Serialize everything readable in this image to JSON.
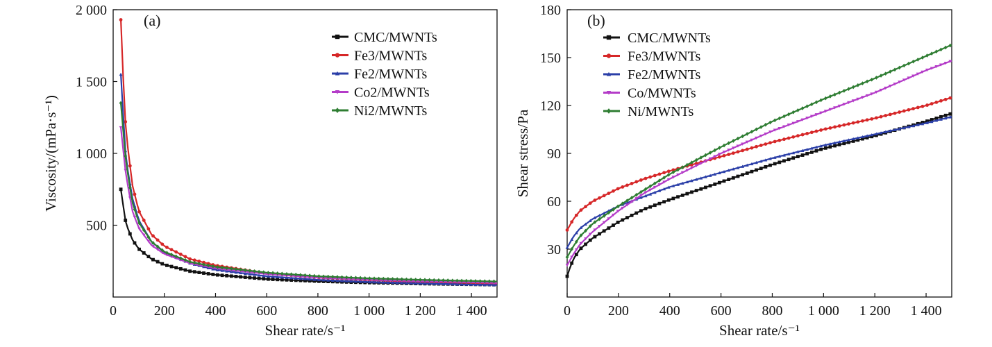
{
  "colors": {
    "CMC": "#111111",
    "Fe3": "#d62728",
    "Fe2": "#2b3fa8",
    "Co": "#b43cc8",
    "Ni": "#2e7d32"
  },
  "chart_data": [
    {
      "type": "line",
      "panel_label": "(a)",
      "title": "",
      "xlabel": "Shear rate/s⁻¹",
      "ylabel": "Viscosity/(mPa·s⁻¹)",
      "xlim": [
        0,
        1500
      ],
      "ylim": [
        0,
        2000
      ],
      "xticks": [
        0,
        200,
        400,
        600,
        800,
        1000,
        1200,
        1400
      ],
      "xtick_labels": [
        "0",
        "200",
        "400",
        "600",
        "800",
        "1 000",
        "1 200",
        "1 400"
      ],
      "yticks": [
        500,
        1000,
        1500,
        2000
      ],
      "ytick_labels": [
        "500",
        "1 000",
        "1 500",
        "2 000"
      ],
      "legend_position": "top-right",
      "series": [
        {
          "name": "CMC/MWNTs",
          "color_key": "CMC",
          "marker": "square",
          "points": [
            [
              30,
              750
            ],
            [
              50,
              510
            ],
            [
              75,
              400
            ],
            [
              100,
              335
            ],
            [
              150,
              265
            ],
            [
              200,
              225
            ],
            [
              300,
              180
            ],
            [
              400,
              155
            ],
            [
              600,
              125
            ],
            [
              800,
              110
            ],
            [
              1000,
              100
            ],
            [
              1200,
              93
            ],
            [
              1400,
              88
            ],
            [
              1500,
              85
            ]
          ]
        },
        {
          "name": "Fe3/MWNTs",
          "color_key": "Fe3",
          "marker": "circle",
          "points": [
            [
              30,
              1930
            ],
            [
              40,
              1500
            ],
            [
              50,
              1150
            ],
            [
              75,
              780
            ],
            [
              100,
              600
            ],
            [
              150,
              435
            ],
            [
              200,
              355
            ],
            [
              300,
              265
            ],
            [
              400,
              220
            ],
            [
              600,
              165
            ],
            [
              800,
              135
            ],
            [
              1000,
              118
            ],
            [
              1200,
              105
            ],
            [
              1400,
              97
            ],
            [
              1500,
              93
            ]
          ]
        },
        {
          "name": "Fe2/MWNTs",
          "color_key": "Fe2",
          "marker": "triangle-up",
          "points": [
            [
              30,
              1550
            ],
            [
              40,
              1250
            ],
            [
              50,
              960
            ],
            [
              75,
              690
            ],
            [
              100,
              535
            ],
            [
              150,
              385
            ],
            [
              200,
              310
            ],
            [
              300,
              235
            ],
            [
              400,
              190
            ],
            [
              600,
              145
            ],
            [
              800,
              120
            ],
            [
              1000,
              105
            ],
            [
              1200,
              95
            ],
            [
              1400,
              87
            ],
            [
              1500,
              84
            ]
          ]
        },
        {
          "name": "Co2/MWNTs",
          "color_key": "Co",
          "marker": "triangle-down",
          "points": [
            [
              30,
              1180
            ],
            [
              50,
              850
            ],
            [
              75,
              600
            ],
            [
              100,
              480
            ],
            [
              150,
              360
            ],
            [
              200,
              300
            ],
            [
              300,
              235
            ],
            [
              400,
              200
            ],
            [
              600,
              160
            ],
            [
              800,
              135
            ],
            [
              1000,
              120
            ],
            [
              1200,
              110
            ],
            [
              1400,
              102
            ],
            [
              1500,
              98
            ]
          ]
        },
        {
          "name": "Ni2/MWNTs",
          "color_key": "Ni",
          "marker": "diamond",
          "points": [
            [
              30,
              1350
            ],
            [
              50,
              940
            ],
            [
              75,
              660
            ],
            [
              100,
              520
            ],
            [
              150,
              385
            ],
            [
              200,
              315
            ],
            [
              300,
              245
            ],
            [
              400,
              210
            ],
            [
              600,
              170
            ],
            [
              800,
              145
            ],
            [
              1000,
              130
            ],
            [
              1200,
              120
            ],
            [
              1400,
              112
            ],
            [
              1500,
              108
            ]
          ]
        }
      ]
    },
    {
      "type": "line",
      "panel_label": "(b)",
      "title": "",
      "xlabel": "Shear rate/s⁻¹",
      "ylabel": "Shear stress/Pa",
      "xlim": [
        0,
        1500
      ],
      "ylim": [
        0,
        180
      ],
      "xticks": [
        0,
        200,
        400,
        600,
        800,
        1000,
        1200,
        1400
      ],
      "xtick_labels": [
        "0",
        "200",
        "400",
        "600",
        "800",
        "1 000",
        "1 200",
        "1 400"
      ],
      "yticks": [
        30,
        60,
        90,
        120,
        150,
        180
      ],
      "ytick_labels": [
        "30",
        "60",
        "90",
        "120",
        "150",
        "180"
      ],
      "legend_position": "top-left",
      "series": [
        {
          "name": "CMC/MWNTs",
          "color_key": "CMC",
          "marker": "square",
          "points": [
            [
              0,
              13
            ],
            [
              10,
              18
            ],
            [
              25,
              24
            ],
            [
              50,
              30
            ],
            [
              100,
              37
            ],
            [
              200,
              47
            ],
            [
              300,
              55
            ],
            [
              400,
              61
            ],
            [
              600,
              72
            ],
            [
              800,
              83
            ],
            [
              1000,
              93
            ],
            [
              1200,
              101
            ],
            [
              1400,
              110
            ],
            [
              1500,
              115
            ]
          ]
        },
        {
          "name": "Fe3/MWNTs",
          "color_key": "Fe3",
          "marker": "circle",
          "points": [
            [
              0,
              42
            ],
            [
              25,
              49
            ],
            [
              50,
              54
            ],
            [
              100,
              60
            ],
            [
              200,
              68
            ],
            [
              300,
              74
            ],
            [
              400,
              79
            ],
            [
              600,
              88
            ],
            [
              800,
              97
            ],
            [
              1000,
              105
            ],
            [
              1200,
              112
            ],
            [
              1400,
              120
            ],
            [
              1500,
              125
            ]
          ]
        },
        {
          "name": "Fe2/MWNTs",
          "color_key": "Fe2",
          "marker": "triangle-up",
          "points": [
            [
              0,
              31
            ],
            [
              25,
              38
            ],
            [
              50,
              43
            ],
            [
              100,
              49
            ],
            [
              200,
              57
            ],
            [
              300,
              63
            ],
            [
              400,
              69
            ],
            [
              600,
              78
            ],
            [
              800,
              87
            ],
            [
              1000,
              95
            ],
            [
              1200,
              102
            ],
            [
              1400,
              109
            ],
            [
              1500,
              113
            ]
          ]
        },
        {
          "name": "Co/MWNTs",
          "color_key": "Co",
          "marker": "triangle-down",
          "points": [
            [
              0,
              20
            ],
            [
              25,
              27
            ],
            [
              50,
              33
            ],
            [
              100,
              41
            ],
            [
              200,
              54
            ],
            [
              300,
              65
            ],
            [
              400,
              74
            ],
            [
              600,
              90
            ],
            [
              800,
              104
            ],
            [
              1000,
              116
            ],
            [
              1200,
              128
            ],
            [
              1400,
              142
            ],
            [
              1500,
              148
            ]
          ]
        },
        {
          "name": "Ni/MWNTs",
          "color_key": "Ni",
          "marker": "diamond",
          "points": [
            [
              0,
              25
            ],
            [
              25,
              32
            ],
            [
              50,
              38
            ],
            [
              100,
              46
            ],
            [
              200,
              57
            ],
            [
              300,
              67
            ],
            [
              400,
              77
            ],
            [
              600,
              94
            ],
            [
              800,
              110
            ],
            [
              1000,
              124
            ],
            [
              1200,
              137
            ],
            [
              1400,
              151
            ],
            [
              1500,
              158
            ]
          ]
        }
      ]
    }
  ]
}
